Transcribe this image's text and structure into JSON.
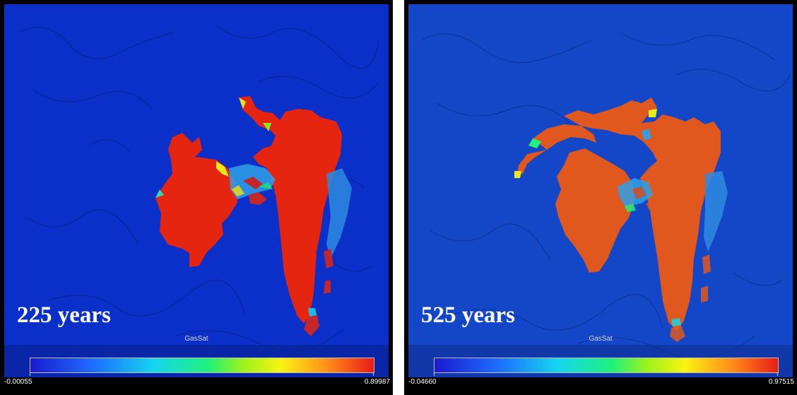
{
  "panels": [
    {
      "time_label": "225 years",
      "variable": "GasSat",
      "colorbar": {
        "min": "-0.00055",
        "max": "0.89987"
      },
      "plume_color": "#e5250f",
      "background_color": "#0b2fc9"
    },
    {
      "time_label": "525 years",
      "variable": "GasSat",
      "colorbar": {
        "min": "-0.04660",
        "max": "0.97515"
      },
      "plume_color": "#e0581e",
      "background_color": "#1446c8"
    }
  ]
}
